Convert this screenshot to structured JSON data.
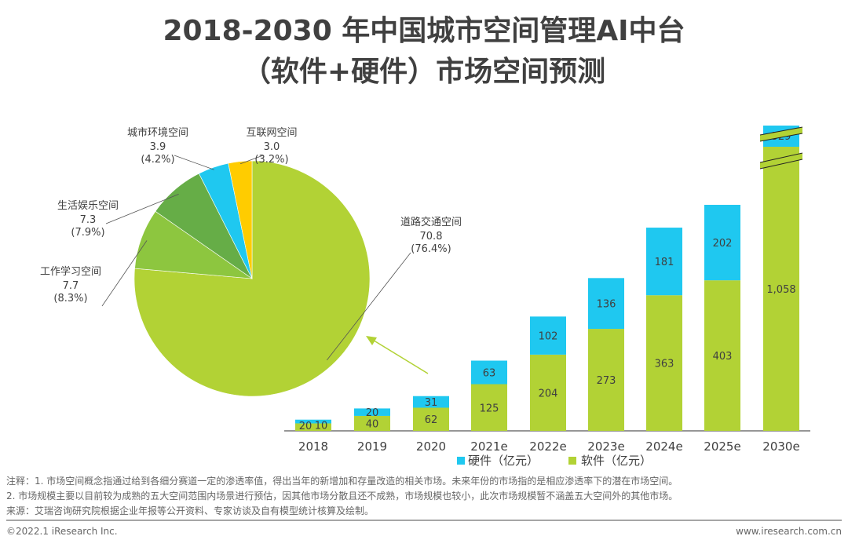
{
  "title": {
    "line1": "2018-2030 年中国城市空间管理AI中台",
    "line2": "（软件+硬件）市场空间预测"
  },
  "colors": {
    "software": "#b2d235",
    "hardware": "#1fc8f0",
    "pie": [
      "#b2d235",
      "#8dc63f",
      "#66ad47",
      "#1fc8f0",
      "#ffcc00"
    ],
    "text": "#404040",
    "arrow": "#b2d235"
  },
  "chart_data": [
    {
      "type": "pie",
      "title": "",
      "slices": [
        {
          "label": "道路交通空间",
          "value": 70.8,
          "percent": "76.4%",
          "value_text": "70.8",
          "percent_text": "(76.4%)"
        },
        {
          "label": "工作学习空间",
          "value": 7.7,
          "percent": "8.3%",
          "value_text": "7.7",
          "percent_text": "(8.3%)"
        },
        {
          "label": "生活娱乐空间",
          "value": 7.3,
          "percent": "7.9%",
          "value_text": "7.3",
          "percent_text": "(7.9%)"
        },
        {
          "label": "城市环境空间",
          "value": 3.9,
          "percent": "4.2%",
          "value_text": "3.9",
          "percent_text": "(4.2%)"
        },
        {
          "label": "互联网空间",
          "value": 3.0,
          "percent": "3.2%",
          "value_text": "3.0",
          "percent_text": "(3.2%)"
        }
      ],
      "annotation": "arrow points from 2021e bar to pie (2021e breakdown)"
    },
    {
      "type": "bar",
      "stacked": true,
      "categories": [
        "2018",
        "2019",
        "2020",
        "2021e",
        "2022e",
        "2023e",
        "2024e",
        "2025e",
        "2030e"
      ],
      "series": [
        {
          "name": "软件（亿元）",
          "values": [
            20,
            40,
            62,
            125,
            204,
            273,
            363,
            403,
            1058
          ],
          "labels": [
            "20",
            "40",
            "62",
            "125",
            "204",
            "273",
            "363",
            "403",
            "1,058"
          ]
        },
        {
          "name": "硬件（亿元）",
          "values": [
            10,
            20,
            31,
            63,
            102,
            136,
            181,
            202,
            529
          ],
          "labels": [
            "10",
            "20",
            "31",
            "63",
            "102",
            "136",
            "181",
            "202",
            "529"
          ]
        }
      ],
      "axis_break": "2030e",
      "xlabel": "",
      "ylabel": "",
      "legend": [
        "硬件（亿元）",
        "软件（亿元）"
      ],
      "legend_position": "bottom",
      "grid": false
    }
  ],
  "notes": {
    "line1": "注释：1. 市场空间概念指通过给到各细分赛道一定的渗透率值，得出当年的新增加和存量改造的相关市场。未来年份的市场指的是相应渗透率下的潜在市场空间。",
    "line2": "2. 市场规模主要以目前较为成熟的五大空间范围内场景进行预估，因其他市场分散且还不成熟，市场规模也较小，此次市场规模暂不涵盖五大空间外的其他市场。",
    "source": "来源：艾瑞咨询研究院根据企业年报等公开资料、专家访谈及自有模型统计核算及绘制。"
  },
  "footer": {
    "copyright": "©2022.1 iResearch Inc.",
    "url": "www.iresearch.com.cn"
  }
}
